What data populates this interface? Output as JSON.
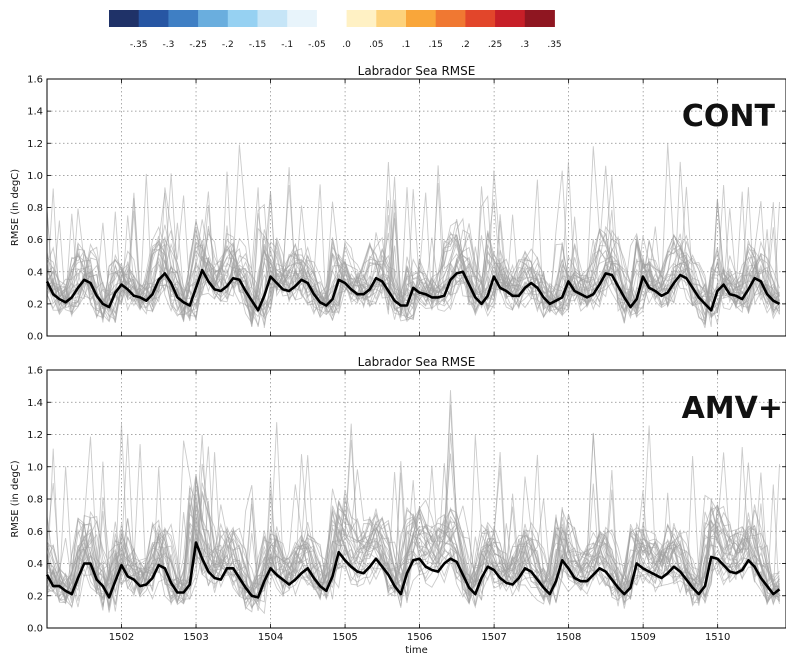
{
  "colorbar": {
    "colors": [
      "#1f3268",
      "#2756a3",
      "#3f7fc4",
      "#6aaede",
      "#96d1f2",
      "#c6e5f7",
      "#e8f4fb",
      "#ffffff",
      "#fff1c4",
      "#fdd27b",
      "#f9a63a",
      "#f07832",
      "#e2462b",
      "#c71f28",
      "#8f1621"
    ],
    "labels": [
      "-.35",
      "-.3",
      "-.25",
      "-.2",
      "-.15",
      "-.1",
      "-.05",
      ".0",
      ".05",
      ".1",
      ".15",
      ".2",
      ".25",
      ".3",
      ".35"
    ]
  },
  "chart_data": [
    {
      "type": "line",
      "panel_tag": "CONT",
      "title": "Labrador Sea RMSE",
      "ylabel": "RMSE (in degC)",
      "xlabel": "",
      "xlim": [
        1501.0,
        1510.917
      ],
      "ylim": [
        0.0,
        1.6
      ],
      "yticks": [
        "0.0",
        "0.2",
        "0.4",
        "0.6",
        "0.8",
        "1.0",
        "1.2",
        "1.4",
        "1.6"
      ],
      "xticks": [
        "1502",
        "1503",
        "1504",
        "1505",
        "1506",
        "1507",
        "1508",
        "1509",
        "1510"
      ],
      "grid": true,
      "ensemble_members_shown": 30,
      "ensemble_color": "#a0a0a0",
      "mean_color": "#000000",
      "mean_series": {
        "name": "",
        "x_start": 1501.0,
        "x_step": 0.0833,
        "values": [
          0.34,
          0.26,
          0.23,
          0.21,
          0.24,
          0.3,
          0.35,
          0.33,
          0.25,
          0.2,
          0.18,
          0.27,
          0.32,
          0.29,
          0.25,
          0.24,
          0.22,
          0.26,
          0.35,
          0.39,
          0.33,
          0.24,
          0.21,
          0.19,
          0.3,
          0.41,
          0.34,
          0.29,
          0.28,
          0.31,
          0.36,
          0.35,
          0.28,
          0.22,
          0.16,
          0.25,
          0.37,
          0.33,
          0.29,
          0.28,
          0.31,
          0.35,
          0.33,
          0.26,
          0.21,
          0.19,
          0.23,
          0.35,
          0.33,
          0.29,
          0.26,
          0.26,
          0.29,
          0.36,
          0.34,
          0.28,
          0.22,
          0.19,
          0.19,
          0.3,
          0.27,
          0.26,
          0.24,
          0.24,
          0.25,
          0.35,
          0.39,
          0.4,
          0.32,
          0.24,
          0.2,
          0.25,
          0.37,
          0.3,
          0.28,
          0.25,
          0.25,
          0.3,
          0.33,
          0.3,
          0.24,
          0.2,
          0.22,
          0.24,
          0.34,
          0.28,
          0.26,
          0.24,
          0.26,
          0.32,
          0.39,
          0.38,
          0.31,
          0.24,
          0.18,
          0.23,
          0.37,
          0.3,
          0.28,
          0.25,
          0.27,
          0.33,
          0.38,
          0.36,
          0.3,
          0.24,
          0.2,
          0.16,
          0.28,
          0.32,
          0.26,
          0.25,
          0.23,
          0.29,
          0.36,
          0.34,
          0.26,
          0.22,
          0.2
        ]
      }
    },
    {
      "type": "line",
      "panel_tag": "AMV+",
      "title": "Labrador Sea RMSE",
      "ylabel": "RMSE (in degC)",
      "xlabel": "time",
      "xlim": [
        1501.0,
        1510.917
      ],
      "ylim": [
        0.0,
        1.6
      ],
      "yticks": [
        "0.0",
        "0.2",
        "0.4",
        "0.6",
        "0.8",
        "1.0",
        "1.2",
        "1.4",
        "1.6"
      ],
      "xticks": [
        "1502",
        "1503",
        "1504",
        "1505",
        "1506",
        "1507",
        "1508",
        "1509",
        "1510"
      ],
      "grid": true,
      "ensemble_members_shown": 30,
      "ensemble_color": "#a0a0a0",
      "mean_color": "#000000",
      "mean_series": {
        "name": "",
        "x_start": 1501.0,
        "x_step": 0.0833,
        "values": [
          0.33,
          0.26,
          0.26,
          0.23,
          0.21,
          0.31,
          0.4,
          0.4,
          0.3,
          0.26,
          0.19,
          0.29,
          0.39,
          0.32,
          0.3,
          0.26,
          0.27,
          0.31,
          0.39,
          0.37,
          0.28,
          0.22,
          0.22,
          0.27,
          0.53,
          0.43,
          0.35,
          0.31,
          0.3,
          0.37,
          0.37,
          0.31,
          0.25,
          0.2,
          0.19,
          0.29,
          0.37,
          0.33,
          0.3,
          0.27,
          0.3,
          0.34,
          0.37,
          0.31,
          0.26,
          0.23,
          0.32,
          0.47,
          0.42,
          0.38,
          0.35,
          0.34,
          0.38,
          0.43,
          0.38,
          0.33,
          0.26,
          0.21,
          0.34,
          0.42,
          0.43,
          0.38,
          0.36,
          0.35,
          0.4,
          0.43,
          0.41,
          0.33,
          0.25,
          0.21,
          0.31,
          0.38,
          0.36,
          0.31,
          0.28,
          0.27,
          0.31,
          0.37,
          0.35,
          0.3,
          0.25,
          0.21,
          0.29,
          0.42,
          0.37,
          0.31,
          0.29,
          0.29,
          0.33,
          0.37,
          0.35,
          0.3,
          0.25,
          0.21,
          0.25,
          0.4,
          0.37,
          0.35,
          0.33,
          0.31,
          0.34,
          0.38,
          0.35,
          0.3,
          0.25,
          0.21,
          0.26,
          0.44,
          0.43,
          0.39,
          0.35,
          0.34,
          0.36,
          0.42,
          0.38,
          0.31,
          0.26,
          0.21,
          0.24
        ]
      }
    }
  ]
}
